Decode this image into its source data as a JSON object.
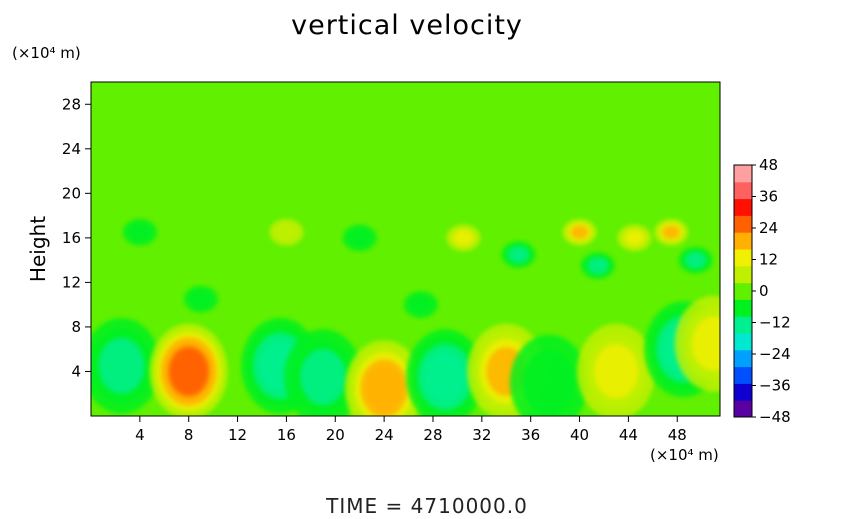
{
  "chart_data": {
    "type": "heatmap",
    "title": "vertical velocity",
    "ylabel": "Height",
    "xlabel": "",
    "x_unit": "(×10⁴ m)",
    "y_unit": "(×10⁴ m)",
    "xlim": [
      0,
      51.5
    ],
    "ylim": [
      0,
      30
    ],
    "x_ticks": [
      4,
      8,
      12,
      16,
      20,
      24,
      28,
      32,
      36,
      40,
      44,
      48
    ],
    "y_ticks": [
      4,
      8,
      12,
      16,
      20,
      24,
      28
    ],
    "colorbar": {
      "ticks": [
        48,
        36,
        24,
        12,
        0,
        -12,
        -24,
        -36,
        -48
      ],
      "range": [
        -48,
        48
      ],
      "colors": [
        "#5a00a0",
        "#1000d0",
        "#0050ff",
        "#00a0ff",
        "#00e8d0",
        "#00f090",
        "#00f020",
        "#60f000",
        "#c0f000",
        "#f0f000",
        "#ffb000",
        "#ff6000",
        "#ff1000",
        "#ff6060",
        "#ffa0a0"
      ]
    },
    "background_value": 0,
    "features": [
      {
        "x": 2.5,
        "y": 4.5,
        "value": -12
      },
      {
        "x": 8,
        "y": 4,
        "value": 26
      },
      {
        "x": 15.5,
        "y": 4.5,
        "value": -14
      },
      {
        "x": 19,
        "y": 3.5,
        "value": -12
      },
      {
        "x": 24,
        "y": 2.5,
        "value": 18
      },
      {
        "x": 29,
        "y": 3.5,
        "value": -14
      },
      {
        "x": 34,
        "y": 4,
        "value": 14
      },
      {
        "x": 37.5,
        "y": 3,
        "value": -6
      },
      {
        "x": 43,
        "y": 4,
        "value": 12
      },
      {
        "x": 48.5,
        "y": 6,
        "value": -14
      },
      {
        "x": 51,
        "y": 6.5,
        "value": 12
      },
      {
        "x": 30.5,
        "y": 16,
        "value": 10
      },
      {
        "x": 40,
        "y": 16.5,
        "value": 14
      },
      {
        "x": 44.5,
        "y": 16,
        "value": 10
      },
      {
        "x": 47.5,
        "y": 16.5,
        "value": 14
      },
      {
        "x": 4,
        "y": 16.5,
        "value": -8
      },
      {
        "x": 16,
        "y": 16.5,
        "value": 8
      },
      {
        "x": 35,
        "y": 14.5,
        "value": -10
      },
      {
        "x": 41.5,
        "y": 13.5,
        "value": -10
      },
      {
        "x": 49.5,
        "y": 14,
        "value": -10
      },
      {
        "x": 22,
        "y": 16,
        "value": -6
      },
      {
        "x": 9,
        "y": 10.5,
        "value": -8
      },
      {
        "x": 27,
        "y": 10,
        "value": -6
      }
    ]
  },
  "time": {
    "label": "TIME",
    "equals": "=",
    "value": "4710000.0"
  }
}
